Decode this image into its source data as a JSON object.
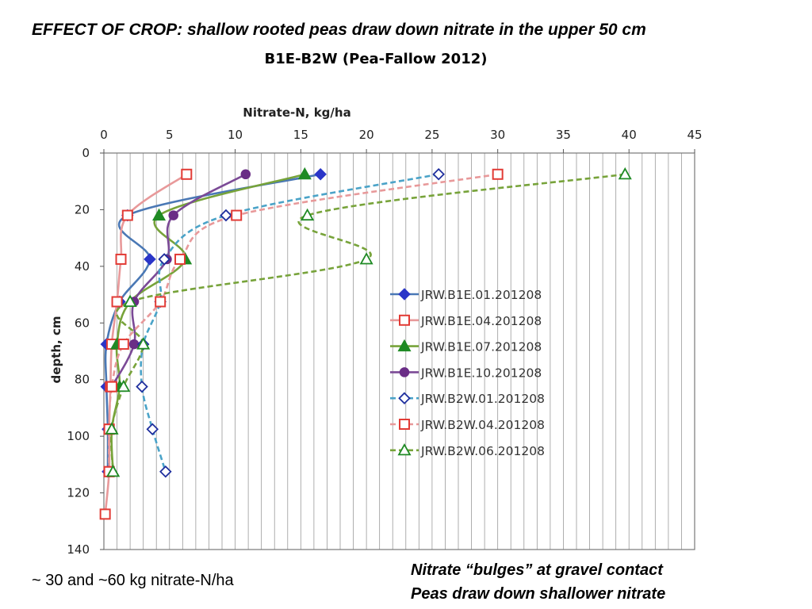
{
  "slide": {
    "title": "EFFECT OF CROP: shallow rooted peas draw down nitrate in the upper 50 cm",
    "note_left": "~ 30 and ~60 kg nitrate-N/ha",
    "note_right_line1": "Nitrate “bulges” at gravel contact",
    "note_right_line2": "Peas draw down shallower nitrate"
  },
  "chart_data": {
    "type": "line",
    "title": "B1E-B2W (Pea-Fallow 2012)",
    "xlabel": "Nitrate-N, kg/ha",
    "ylabel": "depth, cm",
    "xlim": [
      0,
      45
    ],
    "ylim": [
      0,
      140
    ],
    "y_inverted": true,
    "x_axis_position": "top",
    "x_ticks": [
      0,
      5,
      10,
      15,
      20,
      25,
      30,
      35,
      40,
      45
    ],
    "y_ticks": [
      0,
      20,
      40,
      60,
      80,
      100,
      120,
      140
    ],
    "grid": "vertical minor lines every 1 kg/ha",
    "legend_position": "right-middle",
    "series": [
      {
        "name": "JRW.B1E.01.201208",
        "color": "#4a78b5",
        "marker": "diamond-filled",
        "line": "solid",
        "points": [
          [
            16.5,
            7.5
          ],
          [
            1.8,
            22
          ],
          [
            3.5,
            37.5
          ],
          [
            1.2,
            52.5
          ],
          [
            0.2,
            67.5
          ],
          [
            0.2,
            82.5
          ],
          [
            0.3,
            97.5
          ],
          [
            0.3,
            112.5
          ]
        ]
      },
      {
        "name": "JRW.B1E.04.201208",
        "color": "#e8999a",
        "marker": "square-hollow",
        "line": "solid",
        "points": [
          [
            6.3,
            7.5
          ],
          [
            1.8,
            22
          ],
          [
            1.3,
            37.5
          ],
          [
            1.0,
            52.5
          ],
          [
            0.6,
            67.5
          ],
          [
            0.5,
            82.5
          ],
          [
            0.4,
            97.5
          ],
          [
            0.4,
            112.5
          ],
          [
            0.1,
            127.5
          ]
        ]
      },
      {
        "name": "JRW.B1E.07.201208",
        "color": "#77a33a",
        "marker": "triangle-filled",
        "line": "solid",
        "points": [
          [
            15.3,
            7.5
          ],
          [
            4.2,
            22
          ],
          [
            6.2,
            37.5
          ],
          [
            2.0,
            52.5
          ],
          [
            1.0,
            67.5
          ],
          [
            1.2,
            82.5
          ],
          [
            0.6,
            97.5
          ],
          [
            0.7,
            112.5
          ]
        ]
      },
      {
        "name": "JRW.B1E.10.201208",
        "color": "#7b4a96",
        "marker": "circle-filled",
        "line": "solid",
        "points": [
          [
            10.8,
            7.5
          ],
          [
            5.3,
            22
          ],
          [
            4.8,
            37.5
          ],
          [
            2.3,
            52.5
          ],
          [
            2.3,
            67.5
          ],
          [
            0.6,
            82.5
          ]
        ]
      },
      {
        "name": "JRW.B2W.01.201208",
        "color": "#4aa3c8",
        "marker": "diamond-hollow",
        "line": "dashed",
        "points": [
          [
            25.5,
            7.5
          ],
          [
            9.3,
            22
          ],
          [
            4.6,
            37.5
          ],
          [
            4.3,
            52.5
          ],
          [
            3.0,
            67.5
          ],
          [
            2.9,
            82.5
          ],
          [
            3.7,
            97.5
          ],
          [
            4.7,
            112.5
          ]
        ]
      },
      {
        "name": "JRW.B2W.04.201208",
        "color": "#e8999a",
        "marker": "square-hollow",
        "line": "dashed",
        "points": [
          [
            30.0,
            7.5
          ],
          [
            10.1,
            22
          ],
          [
            5.8,
            37.5
          ],
          [
            4.3,
            52.5
          ],
          [
            1.5,
            67.5
          ],
          [
            0.6,
            82.5
          ],
          [
            0.4,
            97.5
          ],
          [
            0.4,
            112.5
          ]
        ]
      },
      {
        "name": "JRW.B2W.06.201208",
        "color": "#77a33a",
        "marker": "triangle-hollow",
        "line": "dashed",
        "points": [
          [
            39.7,
            7.5
          ],
          [
            15.5,
            22
          ],
          [
            20.0,
            37.5
          ],
          [
            2.0,
            52.5
          ],
          [
            3.0,
            67.5
          ],
          [
            1.5,
            82.5
          ],
          [
            0.6,
            97.5
          ],
          [
            0.7,
            112.5
          ]
        ]
      }
    ],
    "series_edge_colors": {
      "JRW.B1E.01.201208": "#2a35c8",
      "JRW.B1E.04.201208": "#e23b35",
      "JRW.B1E.07.201208": "#1f8a24",
      "JRW.B1E.10.201208": "#6a2d86",
      "JRW.B2W.01.201208": "#1f2f9e",
      "JRW.B2W.04.201208": "#e23b35",
      "JRW.B2W.06.201208": "#1f8a24"
    }
  }
}
